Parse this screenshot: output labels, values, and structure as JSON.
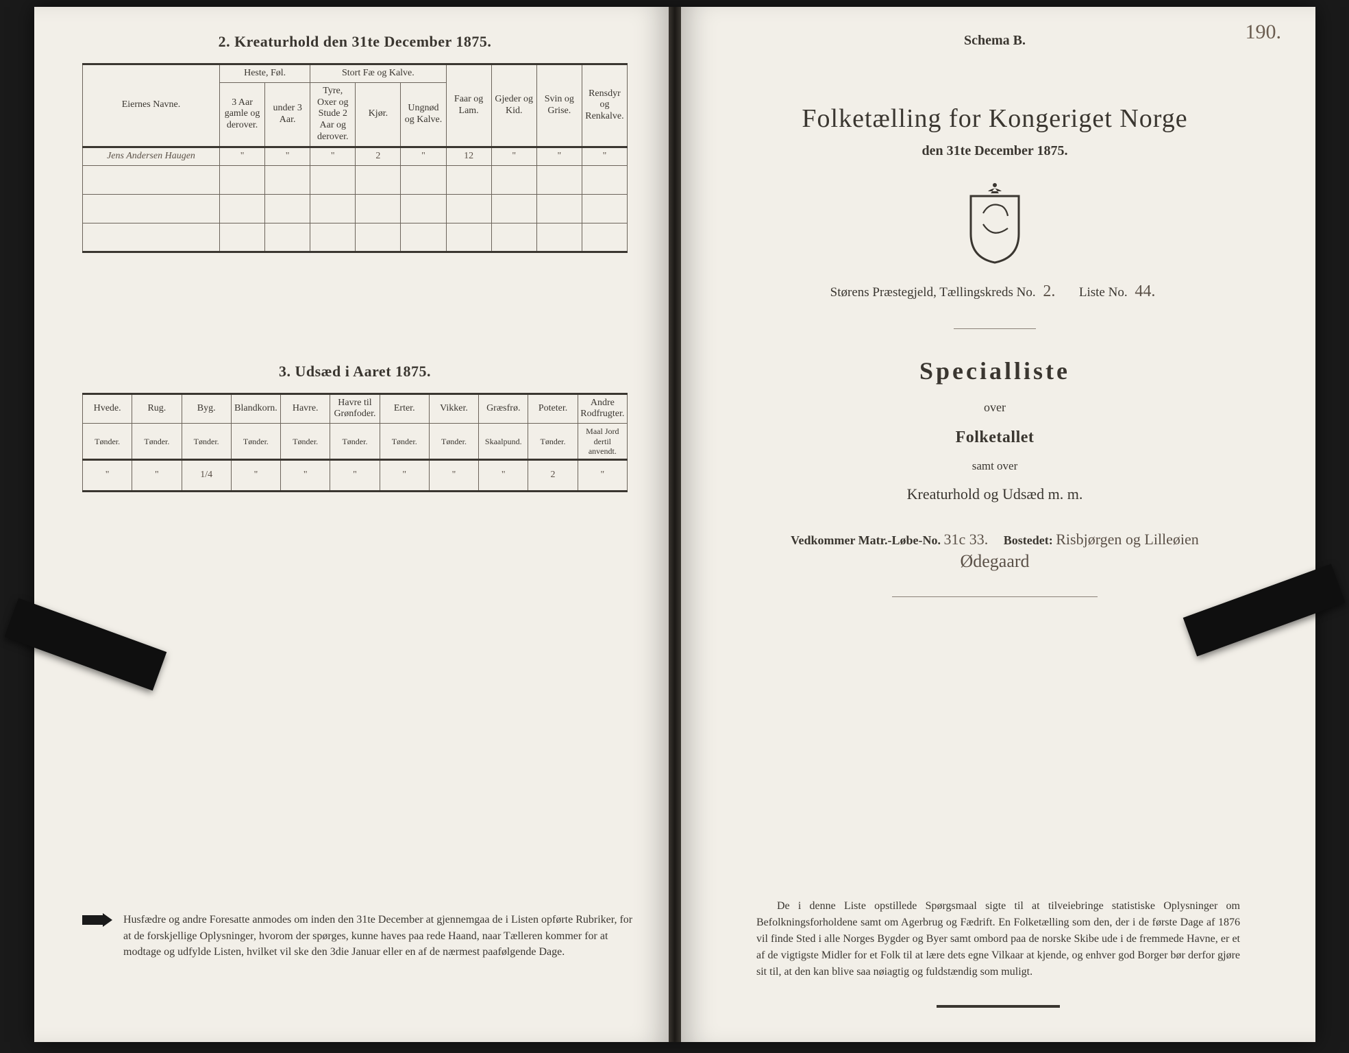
{
  "left": {
    "section2_title": "2.  Kreaturhold den 31te December 1875.",
    "table2": {
      "col_eier": "Eiernes Navne.",
      "grp_heste": "Heste, Føl.",
      "grp_stort": "Stort Fæ og Kalve.",
      "col_faar": "Faar og Lam.",
      "col_gjed": "Gjeder og Kid.",
      "col_svin": "Svin og Grise.",
      "col_rens": "Rensdyr og Renkalve.",
      "sub_h1": "3 Aar gamle og derover.",
      "sub_h2": "under 3 Aar.",
      "sub_s1": "Tyre, Oxer og Stude 2 Aar og derover.",
      "sub_s2": "Kjør.",
      "sub_s3": "Ungnød og Kalve.",
      "row1_name": "Jens Andersen Haugen",
      "row1_v1": "\"",
      "row1_v2": "\"",
      "row1_v3": "\"",
      "row1_v4": "2",
      "row1_v5": "\"",
      "row1_v6": "12",
      "row1_v7": "\"",
      "row1_v8": "\"",
      "row1_v9": "\""
    },
    "section3_title": "3.  Udsæd i Aaret 1875.",
    "table3": {
      "cols": [
        "Hvede.",
        "Rug.",
        "Byg.",
        "Blandkorn.",
        "Havre.",
        "Havre til Grønfoder.",
        "Erter.",
        "Vikker.",
        "Græsfrø.",
        "Poteter.",
        "Andre Rodfrugter."
      ],
      "units": [
        "Tønder.",
        "Tønder.",
        "Tønder.",
        "Tønder.",
        "Tønder.",
        "Tønder.",
        "Tønder.",
        "Tønder.",
        "Skaalpund.",
        "Tønder.",
        "Maal Jord dertil anvendt."
      ],
      "vals": [
        "\"",
        "\"",
        "1/4",
        "\"",
        "\"",
        "\"",
        "\"",
        "\"",
        "\"",
        "2",
        "\""
      ]
    },
    "notice": "Husfædre og andre Foresatte anmodes om inden den 31te December at gjennemgaa de i Listen opførte Rubriker, for at de forskjellige Oplysninger, hvorom der spørges, kunne haves paa rede Haand, naar Tælleren kommer for at modtage og udfylde Listen, hvilket vil ske den 3die Januar eller en af de nærmest paafølgende Dage."
  },
  "right": {
    "schema": "Schema B.",
    "pagenum": "190.",
    "main_title": "Folketælling for Kongeriget Norge",
    "main_date": "den 31te December 1875.",
    "parish_prefix": "Størens Præstegjeld, Tællingskreds No.",
    "parish_no": "2.",
    "liste_prefix": "Liste No.",
    "liste_no": "44.",
    "sp_title": "Specialliste",
    "sp_over": "over",
    "sp_folketallet": "Folketallet",
    "sp_samt": "samt over",
    "sp_kreatur": "Kreaturhold og Udsæd m. m.",
    "matr_prefix": "Vedkommer Matr.-Løbe-No.",
    "matr_no": "31c 33.",
    "bosted_label": "Bostedet:",
    "bosted_val": "Risbjørgen og Lilleøien",
    "bosted_val2": "Ødegaard",
    "blurb": "De i denne Liste opstillede Spørgsmaal sigte til at tilveiebringe statistiske Oplysninger om Befolkningsforholdene samt om Agerbrug og Fædrift.  En Folketælling som den, der i de første Dage af 1876 vil finde Sted i alle Norges Bygder og Byer samt ombord paa de norske Skibe ude i de fremmede Havne, er et af de vigtigste Midler for et Folk til at lære dets egne Vilkaar at kjende, og enhver god Borger bør derfor gjøre sit til, at den kan blive saa nøiagtig og fuldstændig som muligt."
  },
  "colors": {
    "paper": "#f2efe8",
    "ink": "#3a3630",
    "hand": "#5b5148",
    "border": "#6b635a"
  }
}
